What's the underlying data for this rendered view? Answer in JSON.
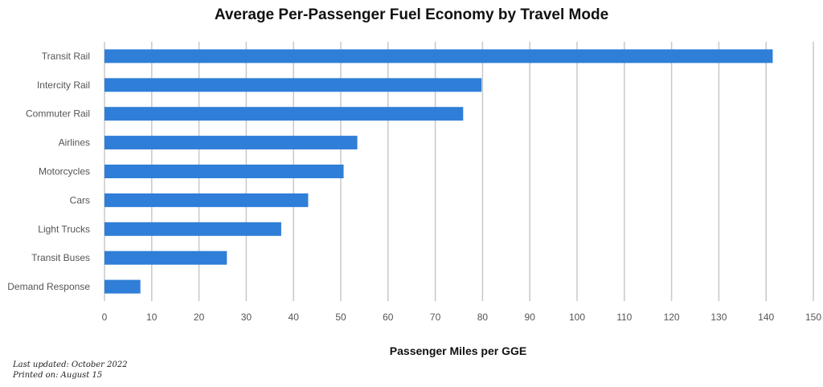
{
  "chart_data": {
    "type": "bar",
    "orientation": "horizontal",
    "title": "Average Per-Passenger Fuel Economy by Travel Mode",
    "xlabel": "Passenger Miles per GGE",
    "ylabel": "",
    "categories": [
      "Transit Rail",
      "Intercity Rail",
      "Commuter Rail",
      "Airlines",
      "Motorcycles",
      "Cars",
      "Light Trucks",
      "Transit Buses",
      "Demand Response"
    ],
    "values": [
      141.4,
      79.8,
      75.9,
      53.5,
      50.6,
      43.1,
      37.4,
      25.9,
      7.6
    ],
    "xlim": [
      0,
      150
    ],
    "x_ticks": [
      0,
      10,
      20,
      30,
      40,
      50,
      60,
      70,
      80,
      90,
      100,
      110,
      120,
      130,
      140,
      150
    ],
    "grid": "vertical",
    "bar_color": "#2f7ed8",
    "grid_color": "#c8c8c8",
    "tick_label_color": "#555555"
  },
  "footer": {
    "last_updated": "Last updated: October 2022",
    "printed_on": "Printed on: August 15"
  }
}
